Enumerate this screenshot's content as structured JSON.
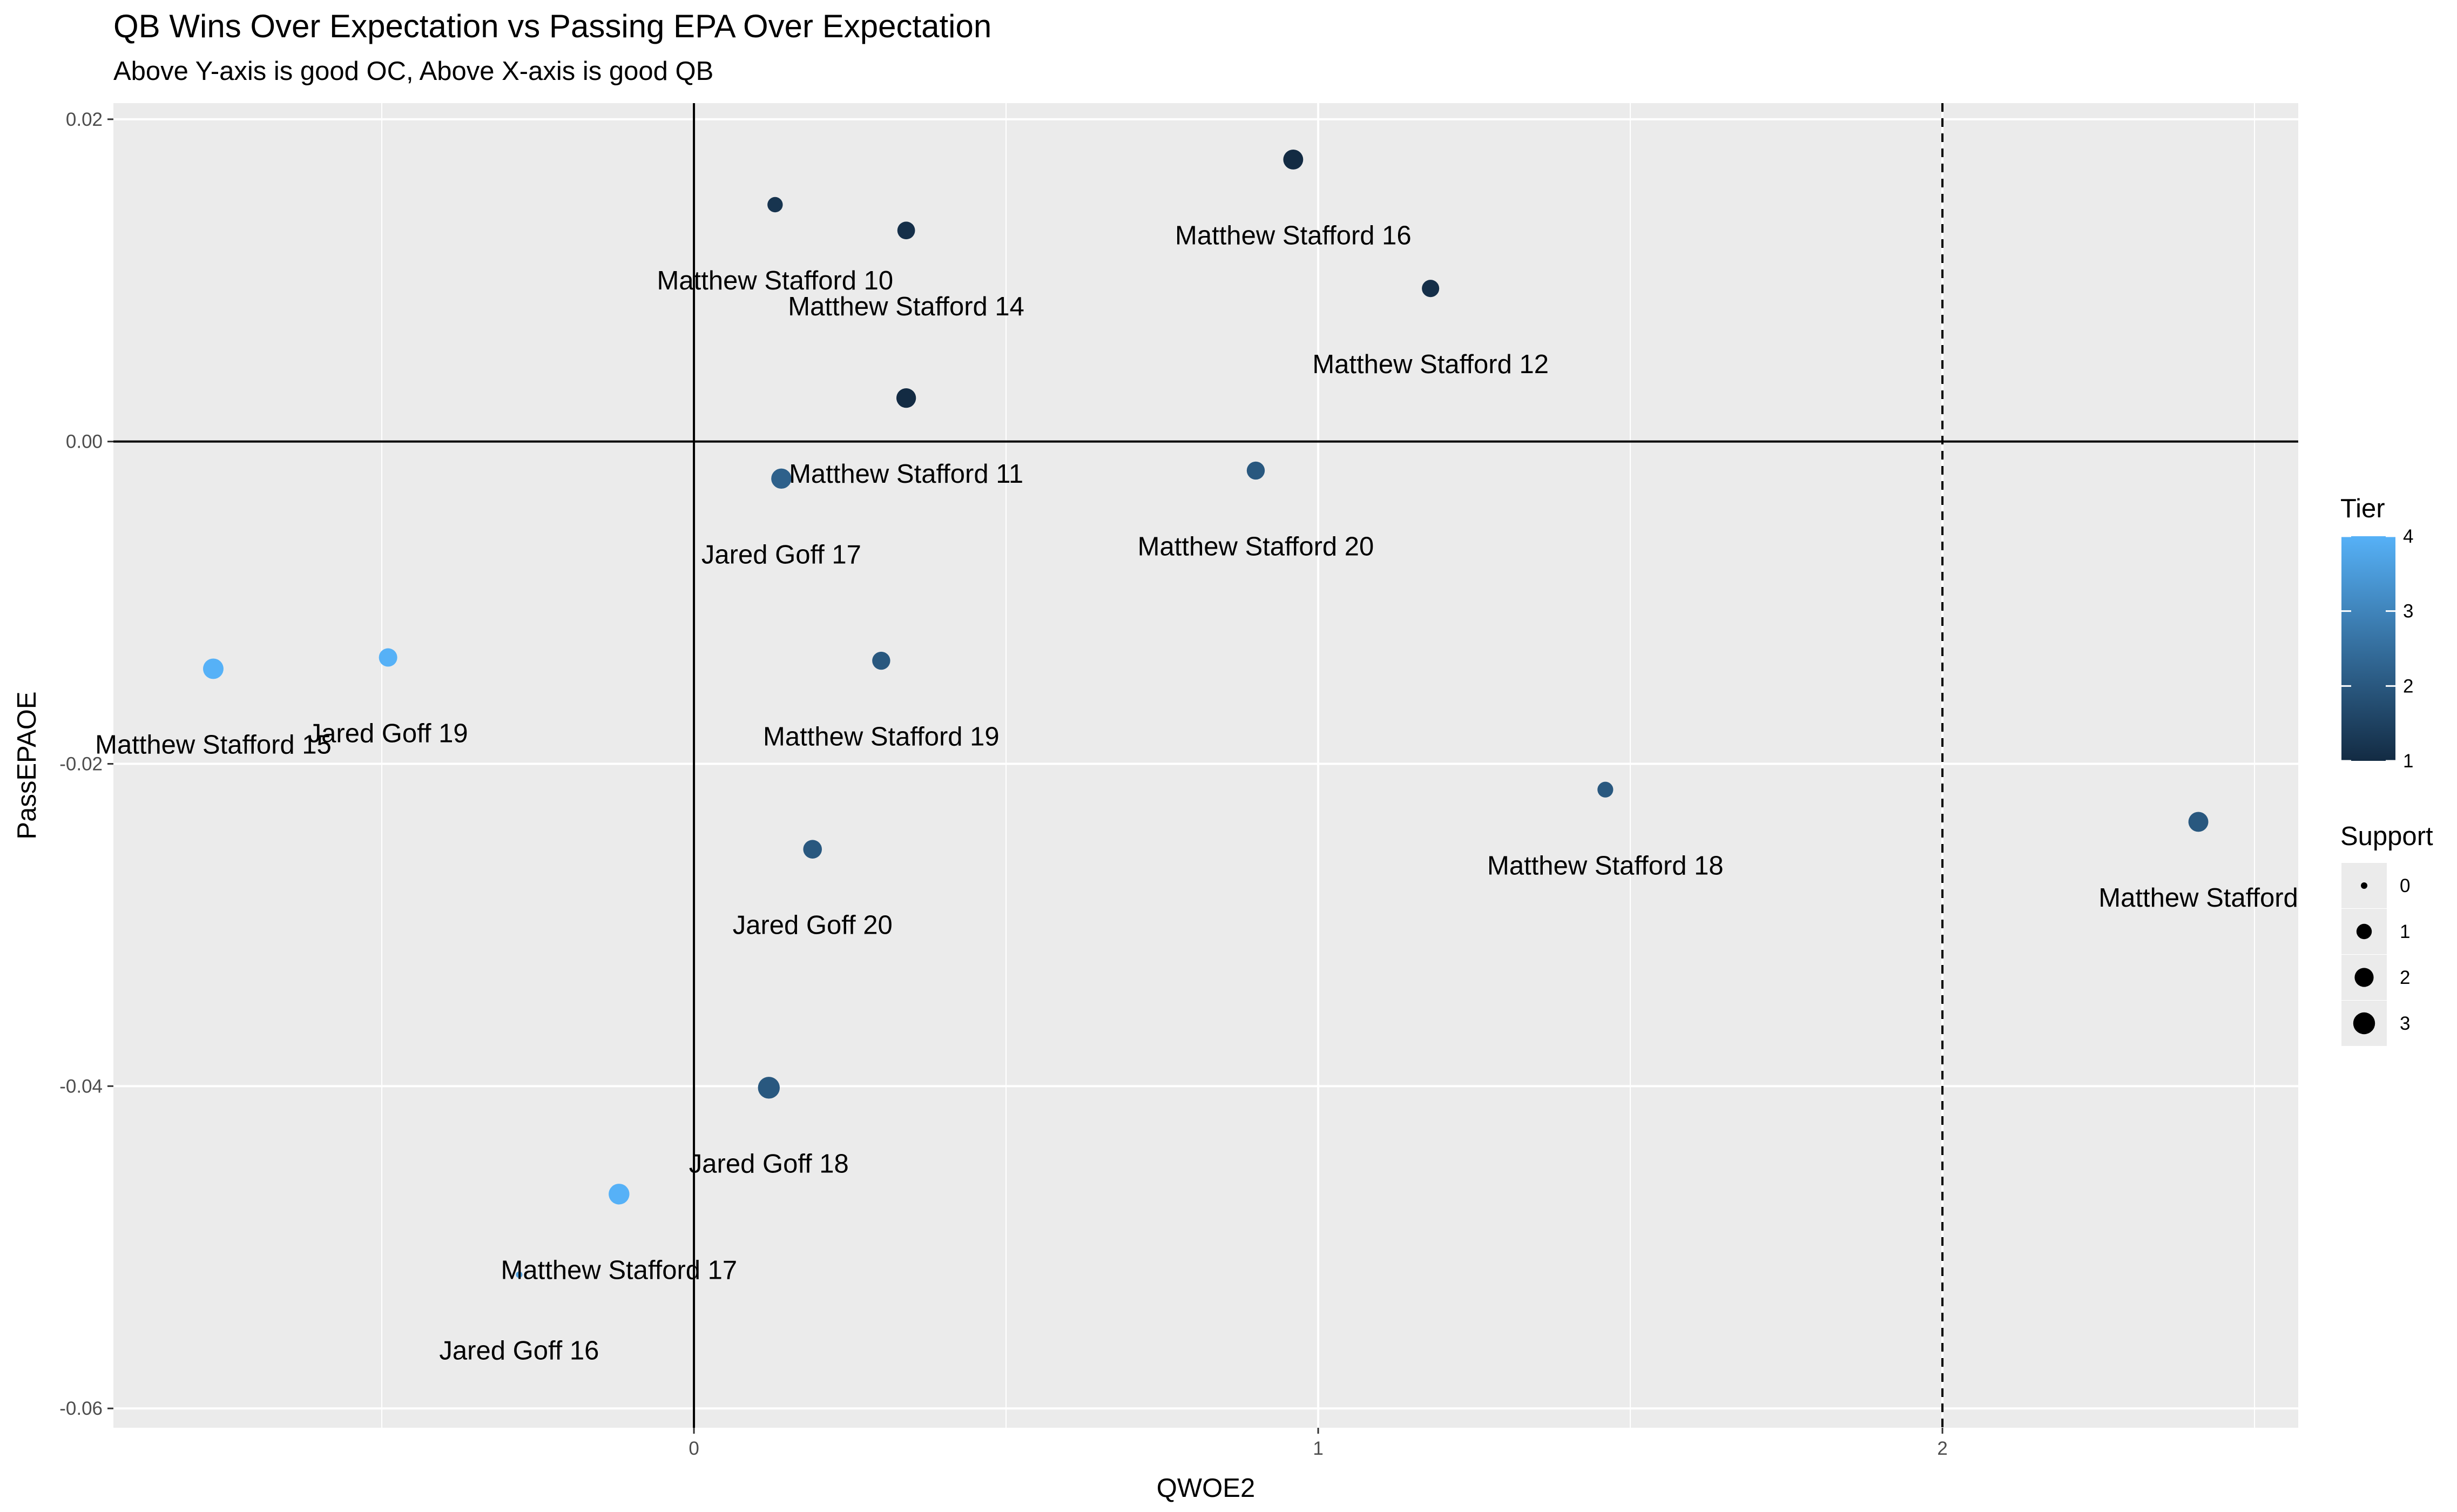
{
  "chart_data": {
    "type": "scatter",
    "title": "QB Wins Over Expectation vs Passing EPA Over Expectation",
    "subtitle": "Above Y-axis is good OC, Above X-axis is good QB",
    "xlabel": "QWOE2",
    "ylabel": "PassEPAOE",
    "xlim": [
      -0.93,
      2.57
    ],
    "ylim": [
      -0.0612,
      0.021
    ],
    "x_ticks": [
      0,
      1,
      2
    ],
    "x_tick_labels": [
      "0",
      "1",
      "2"
    ],
    "y_ticks": [
      0.02,
      0.0,
      -0.02,
      -0.04,
      -0.06
    ],
    "y_tick_labels": [
      "0.02",
      "0.00",
      "-0.02",
      "-0.04",
      "-0.06"
    ],
    "grid": true,
    "reference_lines": {
      "hline_y": 0,
      "vline_x": 0,
      "dashed_vline_x": 2
    },
    "tier_color_low": "#132B43",
    "tier_color_high": "#56B1F7",
    "panel_background": "#EBEBEB",
    "points": [
      {
        "label": "Matthew Stafford 10",
        "x": 0.13,
        "y": 0.0147,
        "tier": 1.2,
        "support": 1.0
      },
      {
        "label": "Matthew Stafford 14",
        "x": 0.34,
        "y": 0.0131,
        "tier": 1.1,
        "support": 1.6
      },
      {
        "label": "Matthew Stafford 16",
        "x": 0.96,
        "y": 0.0175,
        "tier": 1.0,
        "support": 2.3
      },
      {
        "label": "Matthew Stafford 12",
        "x": 1.18,
        "y": 0.0095,
        "tier": 1.1,
        "support": 1.5
      },
      {
        "label": "Matthew Stafford 11",
        "x": 0.34,
        "y": 0.0027,
        "tier": 1.0,
        "support": 2.2
      },
      {
        "label": "Jared Goff 17",
        "x": 0.14,
        "y": -0.0023,
        "tier": 2.2,
        "support": 2.4
      },
      {
        "label": "Matthew Stafford 20",
        "x": 0.9,
        "y": -0.0018,
        "tier": 2.0,
        "support": 1.7
      },
      {
        "label": "Matthew Stafford 15",
        "x": -0.77,
        "y": -0.0141,
        "tier": 4.0,
        "support": 2.5
      },
      {
        "label": "Jared Goff 19",
        "x": -0.49,
        "y": -0.0134,
        "tier": 4.0,
        "support": 1.8
      },
      {
        "label": "Matthew Stafford 19",
        "x": 0.3,
        "y": -0.0136,
        "tier": 2.0,
        "support": 1.7
      },
      {
        "label": "Matthew Stafford 18",
        "x": 1.46,
        "y": -0.0216,
        "tier": 2.0,
        "support": 1.1
      },
      {
        "label": "Matthew Stafford",
        "x": 2.41,
        "y": -0.0236,
        "tier": 2.0,
        "support": 2.3
      },
      {
        "label": "Jared Goff 20",
        "x": 0.19,
        "y": -0.0253,
        "tier": 2.0,
        "support": 1.9
      },
      {
        "label": "Jared Goff 18",
        "x": 0.12,
        "y": -0.0401,
        "tier": 2.0,
        "support": 3.0
      },
      {
        "label": "Matthew Stafford 17",
        "x": -0.12,
        "y": -0.0467,
        "tier": 4.0,
        "support": 2.6
      },
      {
        "label": "Jared Goff 16",
        "x": -0.28,
        "y": -0.0517,
        "tier": 3.5,
        "support": 0.0
      }
    ],
    "legends": {
      "tier": {
        "title": "Tier",
        "ticks": [
          1,
          2,
          3,
          4
        ],
        "tick_labels": [
          "1",
          "2",
          "3",
          "4"
        ]
      },
      "support": {
        "title": "Support",
        "values": [
          0,
          1,
          2,
          3
        ],
        "labels": [
          "0",
          "1",
          "2",
          "3"
        ]
      }
    }
  }
}
